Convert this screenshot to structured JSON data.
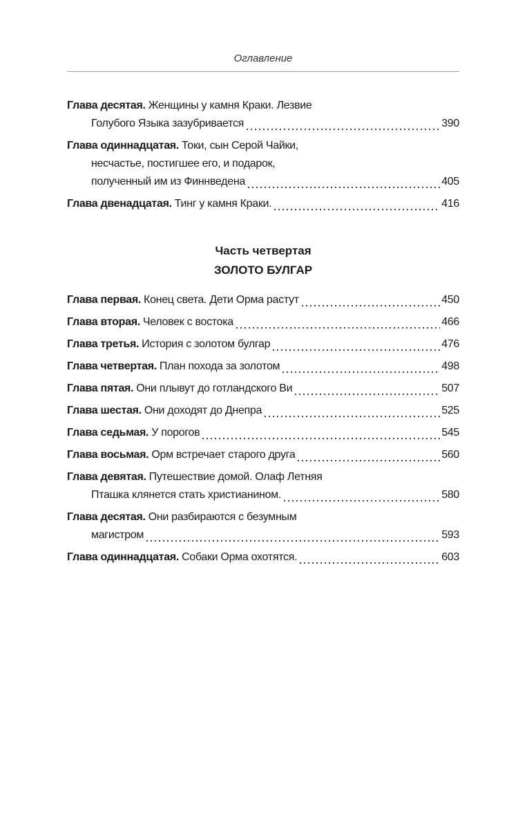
{
  "header": {
    "title": "Оглавление"
  },
  "toc_top": [
    {
      "label": "Глава десятая.",
      "lines": [
        "Женщины у камня Краки. Лезвие",
        "Голубого Языка зазубривается"
      ],
      "page": "390"
    },
    {
      "label": "Глава одиннадцатая.",
      "lines": [
        "Токи, сын Серой Чайки,",
        "несчастье, постигшее его, и подарок,",
        "полученный им из Финнведена"
      ],
      "page": "405"
    },
    {
      "label": "Глава двенадцатая.",
      "lines": [
        "Тинг у камня Краки."
      ],
      "page": "416"
    }
  ],
  "part": {
    "title": "Часть четвертая",
    "subtitle": "ЗОЛОТО БУЛГАР"
  },
  "toc_part": [
    {
      "label": "Глава первая.",
      "lines": [
        "Конец света. Дети Орма растут"
      ],
      "page": "450"
    },
    {
      "label": "Глава вторая.",
      "lines": [
        "Человек с востока"
      ],
      "page": "466"
    },
    {
      "label": "Глава третья.",
      "lines": [
        "История с золотом булгар"
      ],
      "page": "476"
    },
    {
      "label": "Глава четвертая.",
      "lines": [
        "План похода за золотом"
      ],
      "page": "498"
    },
    {
      "label": "Глава пятая.",
      "lines": [
        "Они плывут до готландского Ви"
      ],
      "page": "507"
    },
    {
      "label": "Глава шестая.",
      "lines": [
        "Они доходят до Днепра"
      ],
      "page": "525"
    },
    {
      "label": "Глава седьмая.",
      "lines": [
        "У порогов"
      ],
      "page": "545"
    },
    {
      "label": "Глава восьмая.",
      "lines": [
        "Орм встречает старого друга"
      ],
      "page": "560"
    },
    {
      "label": "Глава девятая.",
      "lines": [
        "Путешествие домой. Олаф Летняя",
        "Пташка клянется стать христианином."
      ],
      "page": "580"
    },
    {
      "label": "Глава десятая.",
      "lines": [
        "Они разбираются с безумным",
        "магистром"
      ],
      "page": "593"
    },
    {
      "label": "Глава одиннадцатая.",
      "lines": [
        "Собаки Орма охотятся."
      ],
      "page": "603"
    }
  ]
}
